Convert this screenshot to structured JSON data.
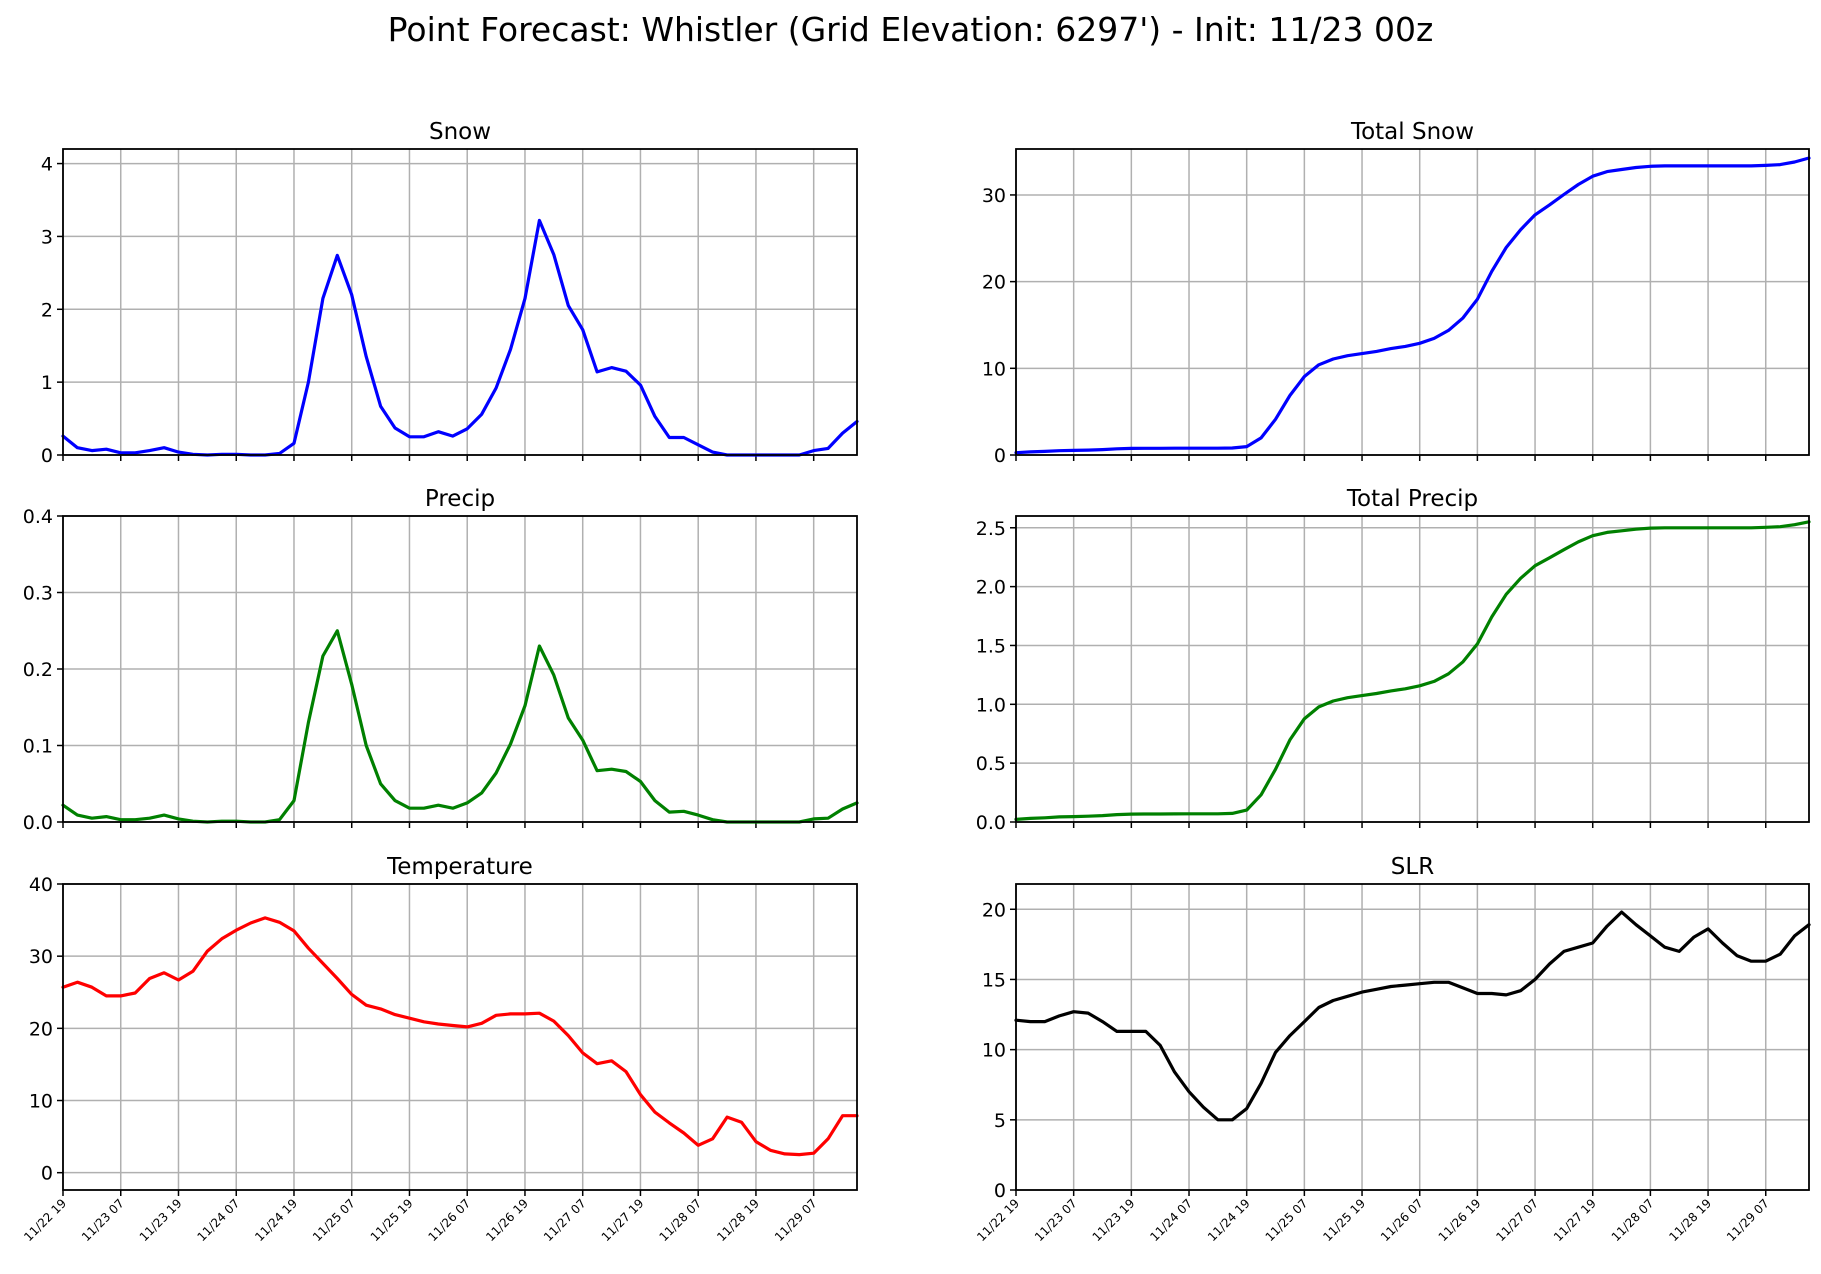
{
  "suptitle": "Point Forecast: Whistler (Grid Elevation: 6297') - Init: 11/23 00z",
  "x_tick_labels": [
    "11/22 19",
    "11/23 07",
    "11/23 19",
    "11/24 07",
    "11/24 19",
    "11/25 07",
    "11/25 19",
    "11/26 07",
    "11/26 19",
    "11/27 07",
    "11/27 19",
    "11/28 07",
    "11/28 19",
    "11/29 07"
  ],
  "x_hours": "hours since 11/22 19, 3-hourly steps, 56 points (0..165)",
  "chart_data": [
    {
      "type": "line",
      "title": "Snow",
      "color": "#0000ff",
      "xlim": [
        0,
        165
      ],
      "ylim": [
        0,
        4.2
      ],
      "yticks": [
        0,
        1,
        2,
        3,
        4
      ],
      "ytick_labels": [
        "0",
        "1",
        "2",
        "3",
        "4"
      ],
      "show_xticklabels": false,
      "grid": true,
      "values": [
        0.26,
        0.1,
        0.06,
        0.08,
        0.03,
        0.03,
        0.06,
        0.1,
        0.04,
        0.01,
        0.0,
        0.01,
        0.01,
        0.0,
        0.0,
        0.02,
        0.16,
        1.0,
        2.15,
        2.74,
        2.2,
        1.35,
        0.67,
        0.37,
        0.25,
        0.25,
        0.32,
        0.26,
        0.36,
        0.56,
        0.92,
        1.45,
        2.15,
        3.22,
        2.75,
        2.05,
        1.72,
        1.14,
        1.2,
        1.15,
        0.96,
        0.53,
        0.24,
        0.24,
        0.14,
        0.04,
        0.0,
        0.0,
        0.0,
        0.0,
        0.0,
        0.0,
        0.06,
        0.09,
        0.3,
        0.46
      ]
    },
    {
      "type": "line",
      "title": "Total Snow",
      "color": "#0000ff",
      "xlim": [
        0,
        165
      ],
      "ylim": [
        0,
        35.3
      ],
      "yticks": [
        0,
        10,
        20,
        30
      ],
      "ytick_labels": [
        "0",
        "10",
        "20",
        "30"
      ],
      "show_xticklabels": false,
      "grid": true,
      "values": [
        0.26,
        0.36,
        0.42,
        0.5,
        0.53,
        0.56,
        0.62,
        0.72,
        0.76,
        0.77,
        0.77,
        0.78,
        0.79,
        0.79,
        0.79,
        0.81,
        0.97,
        1.97,
        4.12,
        6.86,
        9.06,
        10.41,
        11.08,
        11.45,
        11.7,
        11.95,
        12.27,
        12.53,
        12.89,
        13.45,
        14.37,
        15.82,
        17.97,
        21.19,
        23.94,
        25.99,
        27.71,
        28.85,
        30.05,
        31.2,
        32.16,
        32.69,
        32.93,
        33.17,
        33.31,
        33.35,
        33.35,
        33.35,
        33.35,
        33.35,
        33.35,
        33.35,
        33.41,
        33.5,
        33.8,
        34.26
      ]
    },
    {
      "type": "line",
      "title": "Precip",
      "color": "#008000",
      "xlim": [
        0,
        165
      ],
      "ylim": [
        0,
        0.4
      ],
      "yticks": [
        0.0,
        0.1,
        0.2,
        0.3,
        0.4
      ],
      "ytick_labels": [
        "0.0",
        "0.1",
        "0.2",
        "0.3",
        "0.4"
      ],
      "show_xticklabels": false,
      "grid": true,
      "values": [
        0.022,
        0.009,
        0.005,
        0.007,
        0.003,
        0.003,
        0.005,
        0.009,
        0.004,
        0.001,
        0.0,
        0.001,
        0.001,
        0.0,
        0.0,
        0.003,
        0.028,
        0.13,
        0.217,
        0.25,
        0.18,
        0.1,
        0.05,
        0.028,
        0.018,
        0.018,
        0.022,
        0.018,
        0.025,
        0.038,
        0.064,
        0.102,
        0.152,
        0.23,
        0.192,
        0.136,
        0.107,
        0.067,
        0.069,
        0.066,
        0.053,
        0.028,
        0.013,
        0.014,
        0.009,
        0.003,
        0.0,
        0.0,
        0.0,
        0.0,
        0.0,
        0.0,
        0.004,
        0.005,
        0.017,
        0.025
      ]
    },
    {
      "type": "line",
      "title": "Total Precip",
      "color": "#008000",
      "xlim": [
        0,
        165
      ],
      "ylim": [
        0,
        2.6
      ],
      "yticks": [
        0.0,
        0.5,
        1.0,
        1.5,
        2.0,
        2.5
      ],
      "ytick_labels": [
        "0.0",
        "0.5",
        "1.0",
        "1.5",
        "2.0",
        "2.5"
      ],
      "show_xticklabels": false,
      "grid": true,
      "values": [
        0.022,
        0.031,
        0.036,
        0.043,
        0.046,
        0.049,
        0.054,
        0.063,
        0.067,
        0.068,
        0.068,
        0.069,
        0.07,
        0.07,
        0.07,
        0.073,
        0.101,
        0.231,
        0.448,
        0.698,
        0.878,
        0.978,
        1.028,
        1.056,
        1.074,
        1.092,
        1.114,
        1.132,
        1.157,
        1.195,
        1.259,
        1.361,
        1.513,
        1.743,
        1.935,
        2.071,
        2.178,
        2.245,
        2.314,
        2.38,
        2.433,
        2.461,
        2.474,
        2.488,
        2.497,
        2.5,
        2.5,
        2.5,
        2.5,
        2.5,
        2.5,
        2.5,
        2.504,
        2.509,
        2.526,
        2.551
      ]
    },
    {
      "type": "line",
      "title": "Temperature",
      "color": "#ff0000",
      "xlim": [
        0,
        165
      ],
      "ylim": [
        -2.4,
        40
      ],
      "yticks": [
        0,
        10,
        20,
        30,
        40
      ],
      "ytick_labels": [
        "0",
        "10",
        "20",
        "30",
        "40"
      ],
      "show_xticklabels": true,
      "grid": true,
      "values": [
        25.7,
        26.4,
        25.7,
        24.5,
        24.5,
        24.9,
        26.9,
        27.7,
        26.7,
        27.9,
        30.7,
        32.4,
        33.6,
        34.6,
        35.3,
        34.7,
        33.5,
        31.1,
        29.0,
        26.9,
        24.7,
        23.2,
        22.7,
        21.9,
        21.4,
        20.9,
        20.6,
        20.4,
        20.2,
        20.7,
        21.8,
        22.0,
        22.0,
        22.1,
        21.0,
        19.0,
        16.6,
        15.1,
        15.5,
        14.0,
        10.8,
        8.4,
        6.9,
        5.5,
        3.8,
        4.7,
        7.7,
        7.0,
        4.3,
        3.1,
        2.6,
        2.5,
        2.7,
        4.7,
        7.9,
        7.9
      ]
    },
    {
      "type": "line",
      "title": "SLR",
      "color": "#000000",
      "xlim": [
        0,
        165
      ],
      "ylim": [
        0,
        21.8
      ],
      "yticks": [
        0,
        5,
        10,
        15,
        20
      ],
      "ytick_labels": [
        "0",
        "5",
        "10",
        "15",
        "20"
      ],
      "show_xticklabels": true,
      "grid": true,
      "values": [
        12.1,
        12.0,
        12.0,
        12.4,
        12.7,
        12.6,
        12.0,
        11.3,
        11.3,
        11.3,
        10.3,
        8.4,
        7.0,
        5.9,
        5.0,
        5.0,
        5.8,
        7.6,
        9.8,
        11.0,
        12.0,
        13.0,
        13.5,
        13.8,
        14.1,
        14.3,
        14.5,
        14.6,
        14.7,
        14.8,
        14.8,
        14.4,
        14.0,
        14.0,
        13.9,
        14.2,
        15.0,
        16.1,
        17.0,
        17.3,
        17.6,
        18.8,
        19.8,
        18.9,
        18.1,
        17.3,
        17.0,
        18.0,
        18.6,
        17.6,
        16.7,
        16.3,
        16.3,
        16.8,
        18.1,
        18.9
      ]
    }
  ]
}
